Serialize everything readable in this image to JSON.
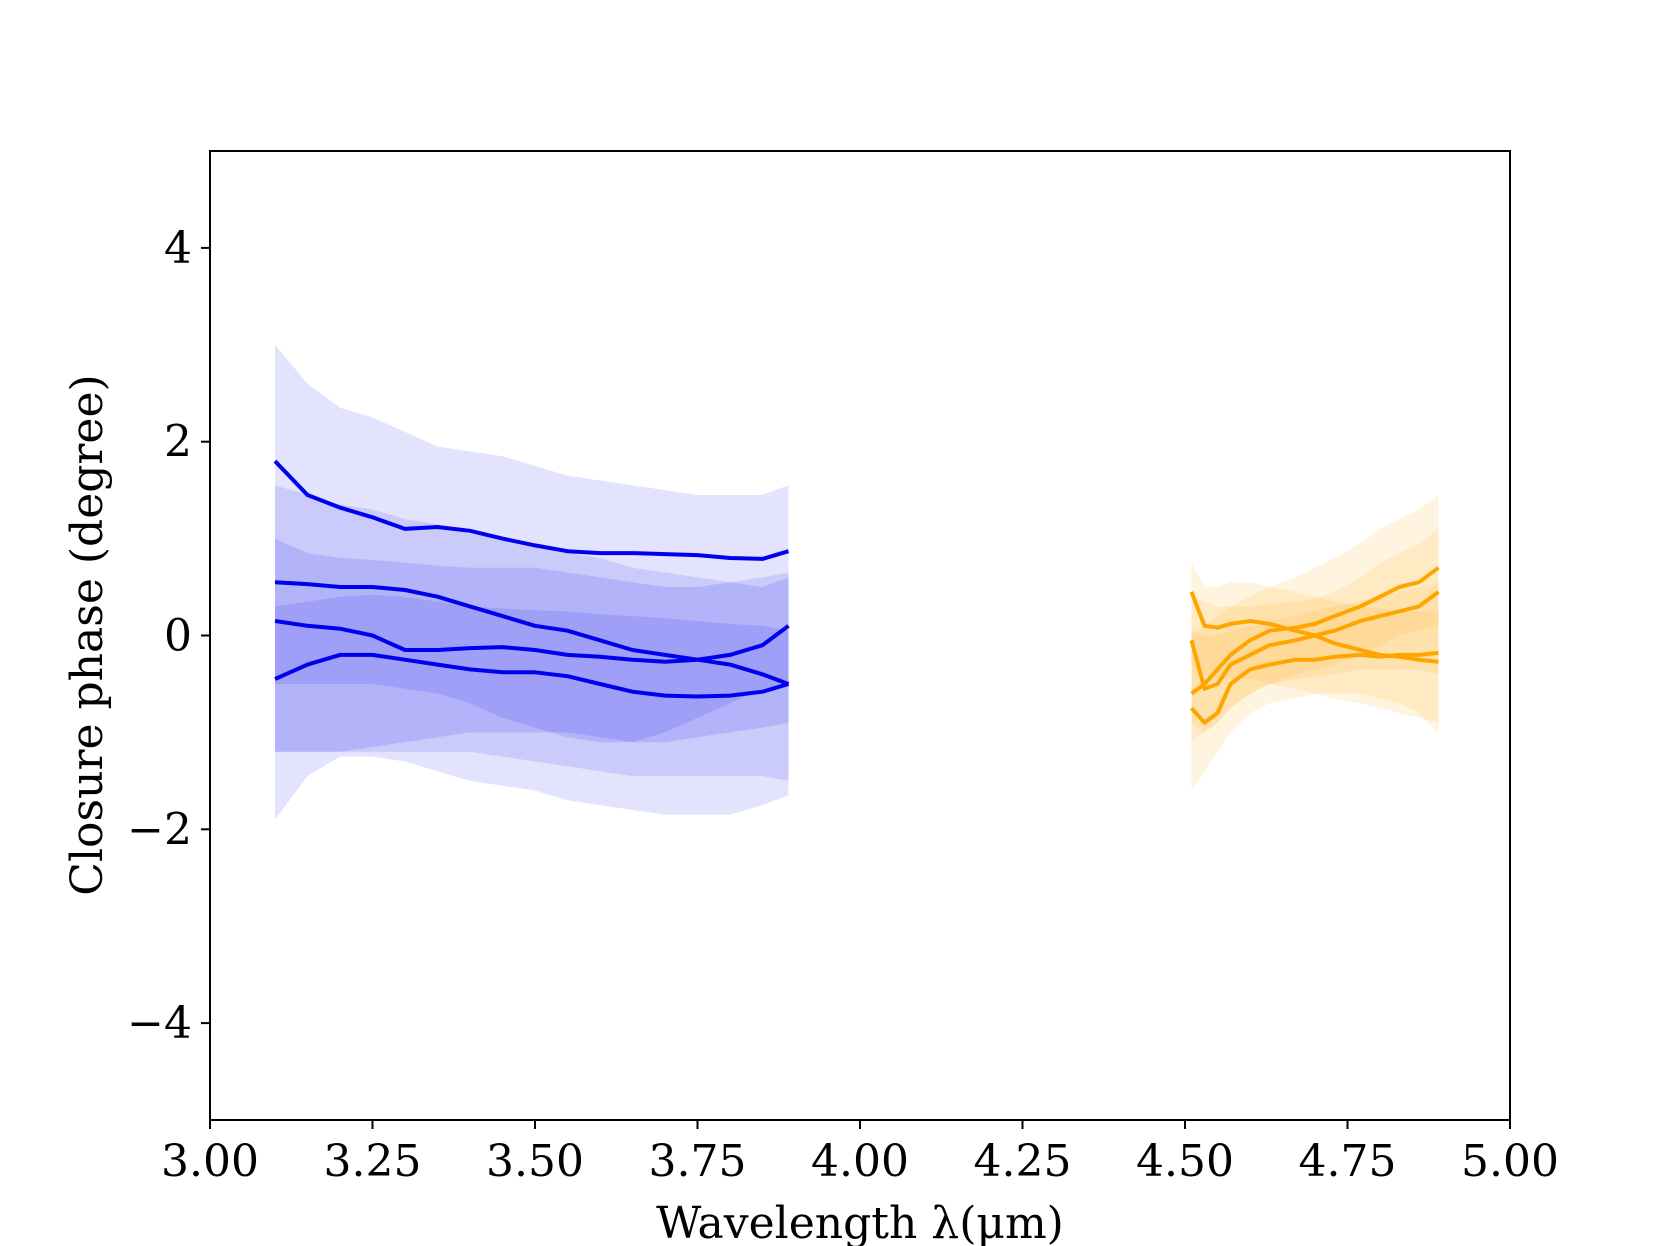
{
  "chart_data": {
    "type": "line",
    "title": "",
    "xlabel": "Wavelength λ(μm)",
    "ylabel": "Closure phase (degree)",
    "xlim": [
      3.0,
      5.0
    ],
    "ylim": [
      -5,
      5
    ],
    "xticks": [
      "3.00",
      "3.25",
      "3.50",
      "3.75",
      "4.00",
      "4.25",
      "4.50",
      "4.75",
      "5.00"
    ],
    "yticks": [
      "−4",
      "−2",
      "0",
      "2",
      "4"
    ],
    "xtick_values": [
      3.0,
      3.25,
      3.5,
      3.75,
      4.0,
      4.25,
      4.5,
      4.75,
      5.0
    ],
    "ytick_values": [
      -4,
      -2,
      0,
      2,
      4
    ],
    "grid": false,
    "colors": {
      "band1": "#0000ee",
      "band2": "#ffa500"
    },
    "series": [
      {
        "band": "L",
        "color": "#0000ee",
        "x": [
          3.1,
          3.15,
          3.2,
          3.25,
          3.3,
          3.35,
          3.4,
          3.45,
          3.5,
          3.55,
          3.6,
          3.65,
          3.7,
          3.75,
          3.8,
          3.85,
          3.89
        ],
        "y": [
          1.8,
          1.45,
          1.32,
          1.22,
          1.1,
          1.12,
          1.08,
          1.0,
          0.93,
          0.87,
          0.85,
          0.85,
          0.84,
          0.83,
          0.8,
          0.79,
          0.87
        ],
        "lower": [
          -1.9,
          -1.45,
          -1.25,
          -1.25,
          -1.3,
          -1.4,
          -1.5,
          -1.55,
          -1.6,
          -1.7,
          -1.75,
          -1.8,
          -1.85,
          -1.85,
          -1.85,
          -1.75,
          -1.65
        ],
        "upper": [
          3.0,
          2.6,
          2.35,
          2.25,
          2.1,
          1.95,
          1.9,
          1.85,
          1.75,
          1.65,
          1.6,
          1.55,
          1.5,
          1.45,
          1.45,
          1.45,
          1.55
        ]
      },
      {
        "band": "L",
        "color": "#0000ee",
        "x": [
          3.1,
          3.15,
          3.2,
          3.25,
          3.3,
          3.35,
          3.4,
          3.45,
          3.5,
          3.55,
          3.6,
          3.65,
          3.7,
          3.75,
          3.8,
          3.85,
          3.89
        ],
        "y": [
          0.55,
          0.53,
          0.5,
          0.5,
          0.47,
          0.4,
          0.3,
          0.2,
          0.1,
          0.05,
          -0.05,
          -0.15,
          -0.2,
          -0.25,
          -0.3,
          -0.4,
          -0.5
        ],
        "lower": [
          -0.5,
          -0.5,
          -0.5,
          -0.5,
          -0.55,
          -0.6,
          -0.7,
          -0.85,
          -0.95,
          -1.05,
          -1.1,
          -1.1,
          -1.0,
          -0.85,
          -0.7,
          -0.55,
          -0.5
        ],
        "upper": [
          1.55,
          1.45,
          1.35,
          1.3,
          1.2,
          1.15,
          1.05,
          1.0,
          0.95,
          0.85,
          0.8,
          0.7,
          0.65,
          0.6,
          0.55,
          0.5,
          0.6
        ]
      },
      {
        "band": "L",
        "color": "#0000ee",
        "x": [
          3.1,
          3.15,
          3.2,
          3.25,
          3.3,
          3.35,
          3.4,
          3.45,
          3.5,
          3.55,
          3.6,
          3.65,
          3.7,
          3.75,
          3.8,
          3.85,
          3.89
        ],
        "y": [
          0.15,
          0.1,
          0.07,
          0.0,
          -0.15,
          -0.15,
          -0.13,
          -0.12,
          -0.15,
          -0.2,
          -0.22,
          -0.25,
          -0.27,
          -0.25,
          -0.2,
          -0.1,
          0.1
        ],
        "lower": [
          -1.2,
          -1.2,
          -1.2,
          -1.2,
          -1.2,
          -1.2,
          -1.2,
          -1.25,
          -1.3,
          -1.35,
          -1.4,
          -1.45,
          -1.45,
          -1.45,
          -1.45,
          -1.45,
          -1.5
        ],
        "upper": [
          1.0,
          0.85,
          0.8,
          0.78,
          0.75,
          0.72,
          0.7,
          0.7,
          0.7,
          0.65,
          0.6,
          0.55,
          0.5,
          0.5,
          0.55,
          0.6,
          0.65
        ]
      },
      {
        "band": "L",
        "color": "#0000ee",
        "x": [
          3.1,
          3.15,
          3.2,
          3.25,
          3.3,
          3.35,
          3.4,
          3.45,
          3.5,
          3.55,
          3.6,
          3.65,
          3.7,
          3.75,
          3.8,
          3.85,
          3.89
        ],
        "y": [
          -0.45,
          -0.3,
          -0.2,
          -0.2,
          -0.25,
          -0.3,
          -0.35,
          -0.38,
          -0.38,
          -0.42,
          -0.5,
          -0.58,
          -0.62,
          -0.63,
          -0.62,
          -0.58,
          -0.5
        ],
        "lower": [
          -1.2,
          -1.2,
          -1.2,
          -1.15,
          -1.1,
          -1.05,
          -1.0,
          -1.0,
          -1.0,
          -1.0,
          -1.05,
          -1.1,
          -1.1,
          -1.05,
          -1.0,
          -0.95,
          -0.9
        ],
        "upper": [
          0.3,
          0.35,
          0.4,
          0.42,
          0.4,
          0.35,
          0.3,
          0.28,
          0.26,
          0.25,
          0.22,
          0.2,
          0.18,
          0.15,
          0.12,
          0.1,
          0.05
        ]
      },
      {
        "band": "M",
        "color": "#ffa500",
        "x": [
          4.51,
          4.53,
          4.55,
          4.57,
          4.6,
          4.63,
          4.67,
          4.7,
          4.73,
          4.77,
          4.8,
          4.83,
          4.86,
          4.89
        ],
        "y": [
          0.45,
          0.1,
          0.08,
          0.12,
          0.15,
          0.12,
          0.05,
          0.0,
          -0.08,
          -0.15,
          -0.2,
          -0.22,
          -0.25,
          -0.27
        ],
        "lower": [
          -0.3,
          -0.4,
          -0.45,
          -0.45,
          -0.45,
          -0.5,
          -0.55,
          -0.6,
          -0.65,
          -0.7,
          -0.75,
          -0.8,
          -0.85,
          -0.9
        ],
        "upper": [
          0.75,
          0.5,
          0.5,
          0.55,
          0.55,
          0.5,
          0.45,
          0.4,
          0.35,
          0.3,
          0.28,
          0.25,
          0.25,
          0.25
        ]
      },
      {
        "band": "M",
        "color": "#ffa500",
        "x": [
          4.51,
          4.53,
          4.55,
          4.57,
          4.6,
          4.63,
          4.67,
          4.7,
          4.73,
          4.77,
          4.8,
          4.83,
          4.86,
          4.89
        ],
        "y": [
          -0.05,
          -0.55,
          -0.5,
          -0.3,
          -0.2,
          -0.1,
          -0.05,
          0.0,
          0.05,
          0.15,
          0.2,
          0.25,
          0.3,
          0.45
        ],
        "lower": [
          -0.9,
          -1.0,
          -0.9,
          -0.75,
          -0.6,
          -0.5,
          -0.45,
          -0.42,
          -0.4,
          -0.35,
          -0.35,
          -0.35,
          -0.35,
          -0.4
        ],
        "upper": [
          0.4,
          0.35,
          0.3,
          0.3,
          0.3,
          0.32,
          0.35,
          0.38,
          0.45,
          0.6,
          0.75,
          0.85,
          0.95,
          1.1
        ]
      },
      {
        "band": "M",
        "color": "#ffa500",
        "x": [
          4.51,
          4.53,
          4.55,
          4.57,
          4.6,
          4.63,
          4.67,
          4.7,
          4.73,
          4.77,
          4.8,
          4.83,
          4.86,
          4.89
        ],
        "y": [
          -0.75,
          -0.9,
          -0.8,
          -0.5,
          -0.35,
          -0.3,
          -0.25,
          -0.25,
          -0.22,
          -0.2,
          -0.22,
          -0.2,
          -0.2,
          -0.18
        ],
        "lower": [
          -1.6,
          -1.4,
          -1.2,
          -1.0,
          -0.8,
          -0.7,
          -0.65,
          -0.6,
          -0.6,
          -0.6,
          -0.65,
          -0.7,
          -0.8,
          -1.0
        ],
        "upper": [
          0.05,
          0.0,
          0.0,
          0.05,
          0.1,
          0.15,
          0.2,
          0.25,
          0.3,
          0.35,
          0.4,
          0.45,
          0.5,
          0.55
        ]
      },
      {
        "band": "M",
        "color": "#ffa500",
        "x": [
          4.51,
          4.53,
          4.55,
          4.57,
          4.6,
          4.63,
          4.67,
          4.7,
          4.73,
          4.77,
          4.8,
          4.83,
          4.86,
          4.89
        ],
        "y": [
          -0.6,
          -0.5,
          -0.35,
          -0.2,
          -0.05,
          0.05,
          0.08,
          0.12,
          0.2,
          0.3,
          0.4,
          0.5,
          0.55,
          0.7
        ],
        "lower": [
          -1.1,
          -1.0,
          -0.9,
          -0.75,
          -0.6,
          -0.5,
          -0.4,
          -0.35,
          -0.3,
          -0.2,
          -0.1,
          0.0,
          0.05,
          0.1
        ],
        "upper": [
          0.0,
          0.1,
          0.2,
          0.3,
          0.4,
          0.5,
          0.6,
          0.7,
          0.8,
          0.95,
          1.1,
          1.2,
          1.3,
          1.45
        ]
      }
    ]
  }
}
